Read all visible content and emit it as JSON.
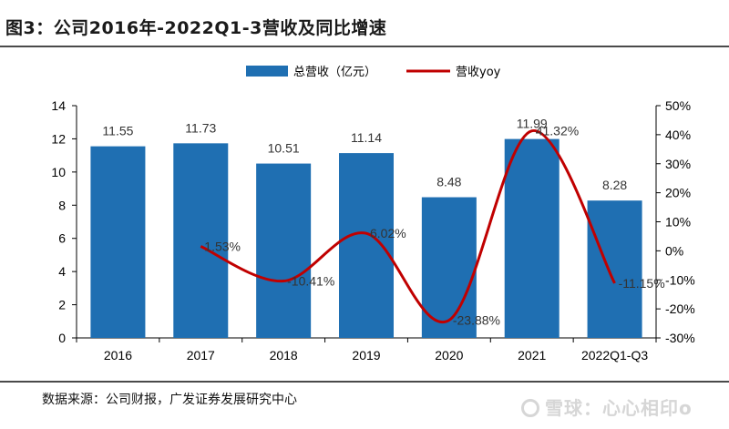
{
  "figure": {
    "title": "图3：公司2016年-2022Q1-3营收及同比增速",
    "source": "数据来源：公司财报，广发证券发展研究中心",
    "watermark": "雪球：心心相印o"
  },
  "colors": {
    "bar": "#1f6fb2",
    "line": "#c00000",
    "rule": "#4a4a4a"
  },
  "chart_data": {
    "type": "bar",
    "categories": [
      "2016",
      "2017",
      "2018",
      "2019",
      "2020",
      "2021",
      "2022Q1-Q3"
    ],
    "series": [
      {
        "name": "总营收（亿元）",
        "type": "bar",
        "axis": "left",
        "values": [
          11.55,
          11.73,
          10.51,
          11.14,
          8.48,
          11.99,
          8.28
        ],
        "labels": [
          "11.55",
          "11.73",
          "10.51",
          "11.14",
          "8.48",
          "11.99",
          "8.28"
        ]
      },
      {
        "name": "营收yoy",
        "type": "line",
        "axis": "right",
        "smooth": true,
        "values": [
          null,
          1.53,
          -10.41,
          6.02,
          -23.88,
          41.32,
          -11.15
        ],
        "labels": [
          "",
          "1.53%",
          "-10.41%",
          "6.02%",
          "-23.88%",
          "41.32%",
          "-11.15%"
        ]
      }
    ],
    "y_left": {
      "ylim": [
        0,
        14
      ],
      "ticks": [
        "0",
        "2",
        "4",
        "6",
        "8",
        "10",
        "12",
        "14"
      ]
    },
    "y_right": {
      "ylim": [
        -30,
        50
      ],
      "ticks": [
        "-30%",
        "-20%",
        "-10%",
        "0%",
        "10%",
        "20%",
        "30%",
        "40%",
        "50%"
      ]
    },
    "grid": false,
    "legend": "top-center"
  }
}
